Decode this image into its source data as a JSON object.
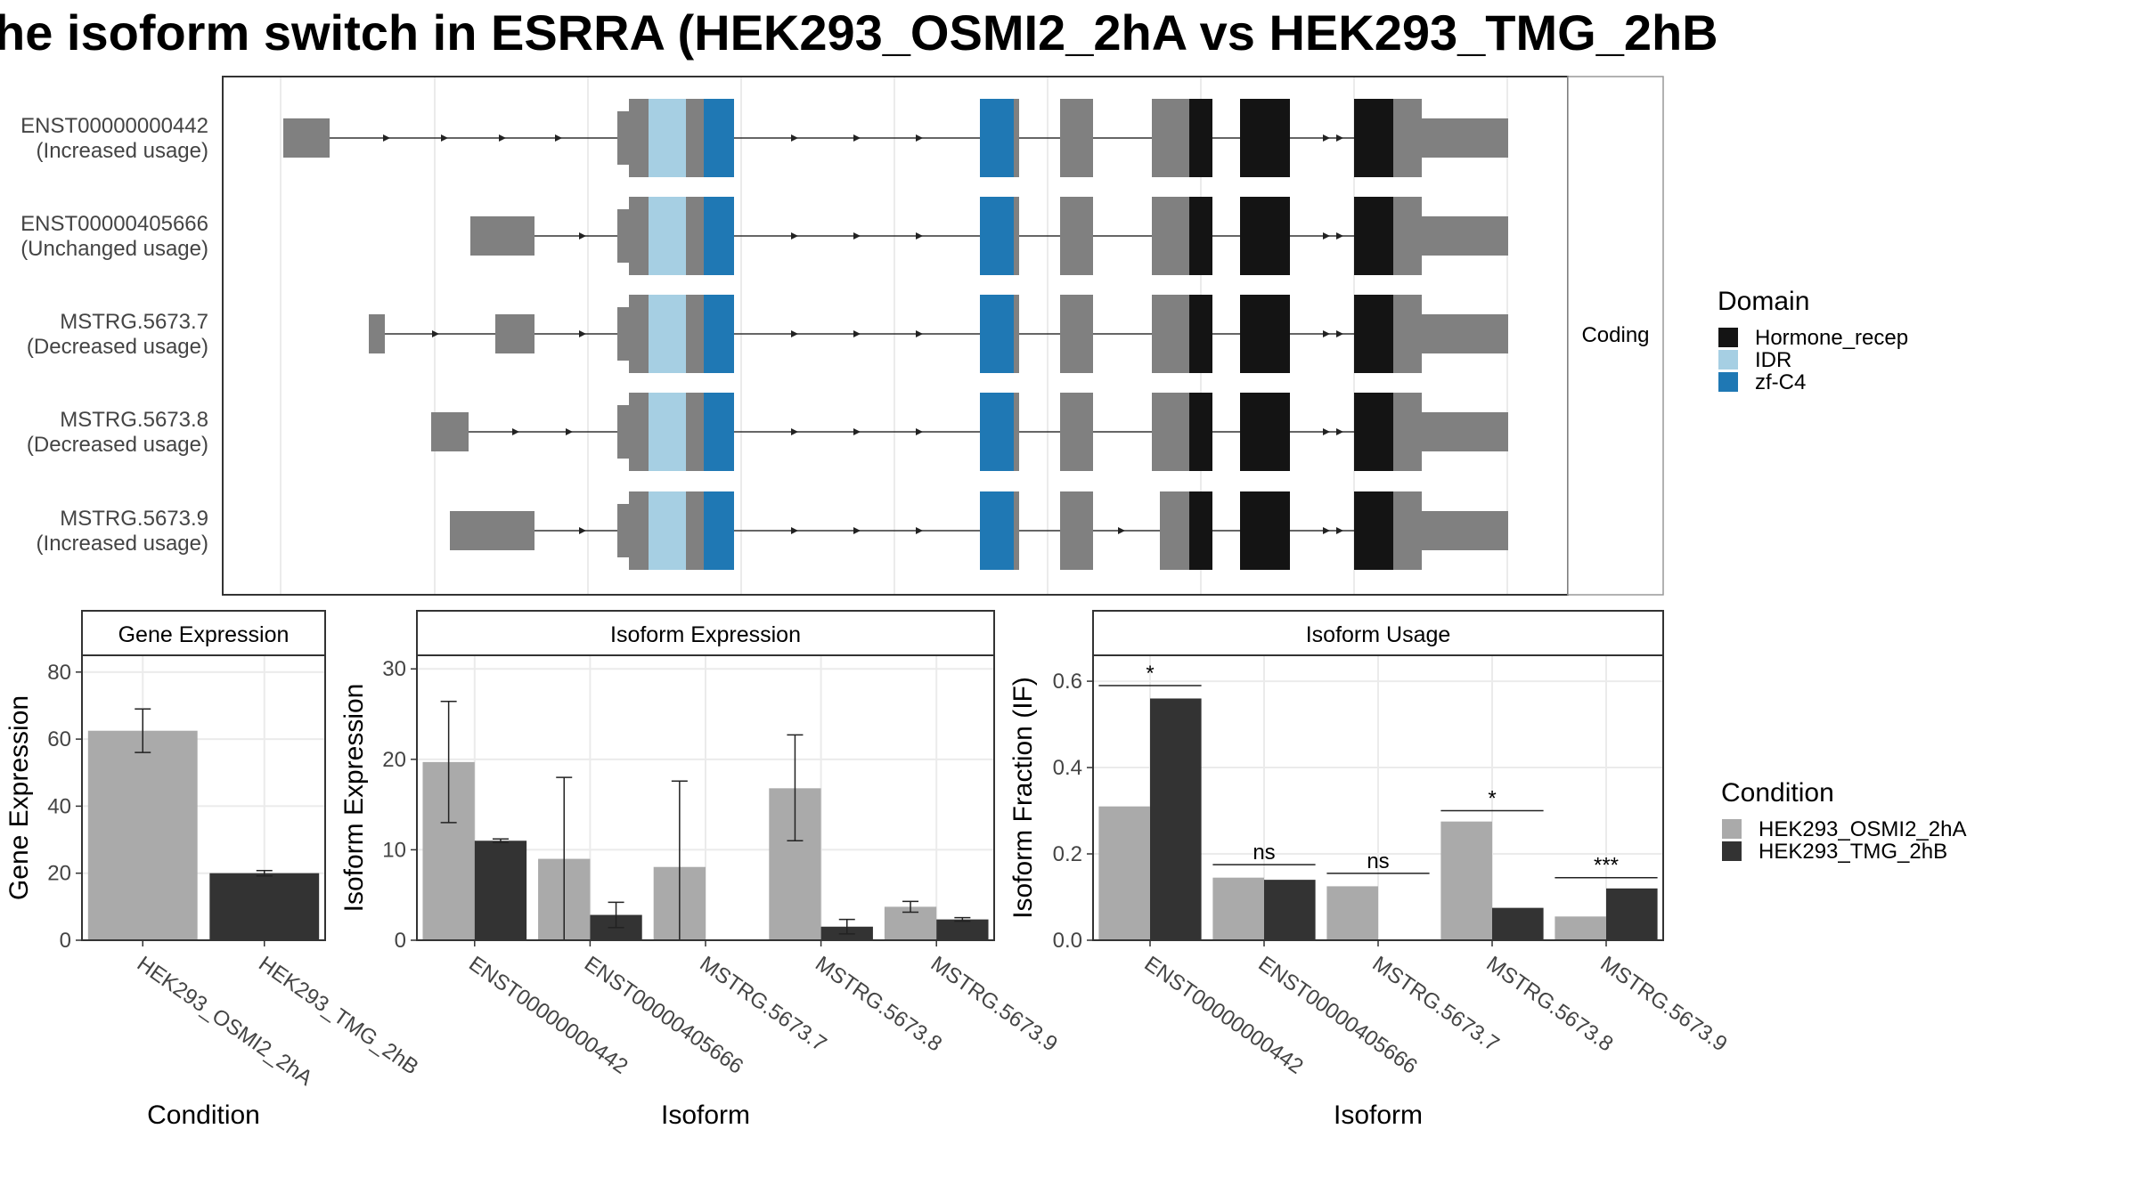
{
  "title": "he isoform switch in ESRRA (HEK293_OSMI2_2hA vs HEK293_TMG_2hB",
  "colors": {
    "exon": "#808080",
    "hormone_recep": "#141414",
    "idr": "#a6cfe3",
    "zf_c4": "#1f78b4",
    "cond1": "#aaaaaa",
    "cond2": "#333333",
    "grid": "#ebebeb",
    "strip_border": "#444444"
  },
  "transcripts": {
    "strip_label": "Coding",
    "rows": [
      {
        "id": "ENST00000000442",
        "note": "(Increased usage)"
      },
      {
        "id": "ENST00000405666",
        "note": "(Unchanged usage)"
      },
      {
        "id": "MSTRG.5673.7",
        "note": "(Decreased usage)"
      },
      {
        "id": "MSTRG.5673.8",
        "note": "(Decreased usage)"
      },
      {
        "id": "MSTRG.5673.9",
        "note": "(Increased usage)"
      }
    ]
  },
  "legend_domain": {
    "title": "Domain",
    "items": [
      {
        "label": "Hormone_recep",
        "color": "#141414"
      },
      {
        "label": "IDR",
        "color": "#a6cfe3"
      },
      {
        "label": "zf-C4",
        "color": "#1f78b4"
      }
    ]
  },
  "legend_condition": {
    "title": "Condition",
    "items": [
      {
        "label": "HEK293_OSMI2_2hA",
        "color": "#aaaaaa"
      },
      {
        "label": "HEK293_TMG_2hB",
        "color": "#333333"
      }
    ]
  },
  "chart_data": [
    {
      "type": "bar",
      "title": "Gene Expression",
      "xlabel": "Condition",
      "ylabel": "Gene Expression",
      "ylim": [
        0,
        85
      ],
      "yticks": [
        0,
        20,
        40,
        60,
        80
      ],
      "categories": [
        "HEK293_OSMI2_2hA",
        "HEK293_TMG_2hB"
      ],
      "values": [
        62.5,
        20
      ],
      "err_low": [
        56,
        19.2
      ],
      "err_high": [
        69,
        20.8
      ]
    },
    {
      "type": "bar",
      "title": "Isoform Expression",
      "xlabel": "Isoform",
      "ylabel": "Isoform Expression",
      "ylim": [
        0,
        31.5
      ],
      "yticks": [
        0,
        10,
        20,
        30
      ],
      "categories": [
        "ENST00000000442",
        "ENST00000405666",
        "MSTRG.5673.7",
        "MSTRG.5673.8",
        "MSTRG.5673.9"
      ],
      "series": [
        {
          "name": "HEK293_OSMI2_2hA",
          "values": [
            19.7,
            9.0,
            8.1,
            16.8,
            3.7
          ],
          "err_low": [
            13.0,
            0.0,
            0.0,
            11.0,
            3.1
          ],
          "err_high": [
            26.4,
            18.0,
            17.6,
            22.7,
            4.3
          ]
        },
        {
          "name": "HEK293_TMG_2hB",
          "values": [
            11.0,
            2.8,
            0.0,
            1.5,
            2.3
          ],
          "err_low": [
            10.8,
            1.4,
            0.0,
            0.7,
            2.1
          ],
          "err_high": [
            11.2,
            4.2,
            0.0,
            2.3,
            2.5
          ]
        }
      ]
    },
    {
      "type": "bar",
      "title": "Isoform Usage",
      "xlabel": "Isoform",
      "ylabel": "Isoform Fraction (IF)",
      "ylim": [
        0,
        0.66
      ],
      "yticks": [
        0.0,
        0.2,
        0.4,
        0.6
      ],
      "categories": [
        "ENST00000000442",
        "ENST00000405666",
        "MSTRG.5673.7",
        "MSTRG.5673.8",
        "MSTRG.5673.9"
      ],
      "series": [
        {
          "name": "HEK293_OSMI2_2hA",
          "values": [
            0.31,
            0.145,
            0.125,
            0.275,
            0.055
          ]
        },
        {
          "name": "HEK293_TMG_2hB",
          "values": [
            0.56,
            0.14,
            0.0,
            0.075,
            0.12
          ]
        }
      ],
      "significance": [
        "*",
        "ns",
        "ns",
        "*",
        "***"
      ],
      "sig_y": [
        0.59,
        0.175,
        0.155,
        0.3,
        0.145
      ]
    }
  ]
}
